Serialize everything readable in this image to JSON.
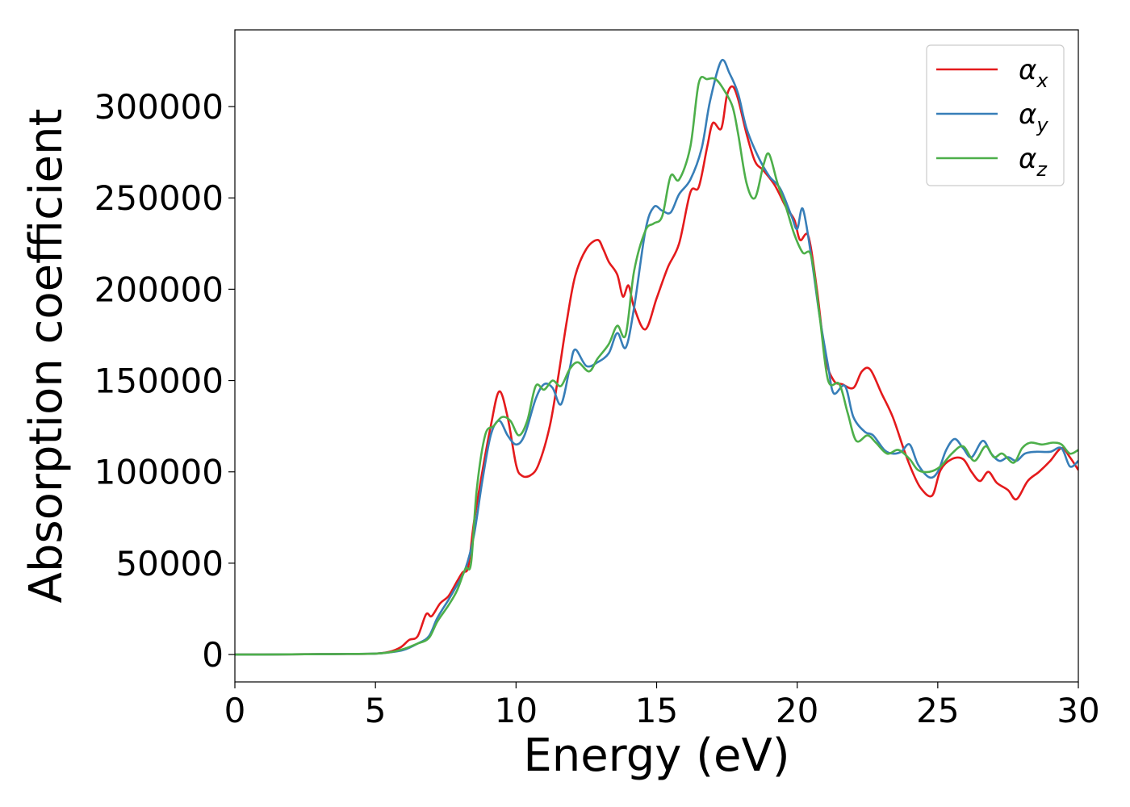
{
  "chart_data": {
    "type": "line",
    "title": "",
    "xlabel": "Energy (eV)",
    "ylabel": "Absorption coefficient",
    "xlim": [
      0,
      30
    ],
    "ylim": [
      -15000,
      342000
    ],
    "x_ticks": [
      0,
      5,
      10,
      15,
      20,
      25,
      30
    ],
    "y_ticks": [
      0,
      50000,
      100000,
      150000,
      200000,
      250000,
      300000
    ],
    "grid": false,
    "legend_position": "top-right",
    "series": [
      {
        "name": "α_x",
        "legend_symbol": "α",
        "legend_subscript": "x",
        "color": "#e41a1c",
        "points": [
          [
            0,
            0
          ],
          [
            1,
            0
          ],
          [
            2,
            100
          ],
          [
            3,
            200
          ],
          [
            4,
            300
          ],
          [
            5,
            500
          ],
          [
            5.5,
            1500
          ],
          [
            5.9,
            4000
          ],
          [
            6.2,
            8000
          ],
          [
            6.5,
            10000
          ],
          [
            6.8,
            22000
          ],
          [
            7.0,
            21000
          ],
          [
            7.3,
            28000
          ],
          [
            7.6,
            32000
          ],
          [
            7.9,
            40000
          ],
          [
            8.1,
            45000
          ],
          [
            8.3,
            48000
          ],
          [
            8.5,
            72000
          ],
          [
            8.8,
            100000
          ],
          [
            9.1,
            125000
          ],
          [
            9.4,
            144000
          ],
          [
            9.7,
            130000
          ],
          [
            10.0,
            104000
          ],
          [
            10.2,
            98000
          ],
          [
            10.5,
            98000
          ],
          [
            10.8,
            104000
          ],
          [
            11.2,
            125000
          ],
          [
            11.5,
            152000
          ],
          [
            11.8,
            182000
          ],
          [
            12.1,
            207000
          ],
          [
            12.5,
            222000
          ],
          [
            12.9,
            227000
          ],
          [
            13.1,
            222000
          ],
          [
            13.3,
            215000
          ],
          [
            13.6,
            208000
          ],
          [
            13.8,
            196000
          ],
          [
            14.0,
            202000
          ],
          [
            14.2,
            190000
          ],
          [
            14.6,
            178000
          ],
          [
            15.0,
            195000
          ],
          [
            15.4,
            212000
          ],
          [
            15.8,
            225000
          ],
          [
            16.2,
            253000
          ],
          [
            16.5,
            256000
          ],
          [
            16.8,
            278000
          ],
          [
            17.0,
            291000
          ],
          [
            17.3,
            288000
          ],
          [
            17.5,
            306000
          ],
          [
            17.7,
            311000
          ],
          [
            17.9,
            304000
          ],
          [
            18.2,
            285000
          ],
          [
            18.5,
            270000
          ],
          [
            18.8,
            265000
          ],
          [
            19.2,
            257000
          ],
          [
            19.6,
            245000
          ],
          [
            19.9,
            238000
          ],
          [
            20.1,
            227000
          ],
          [
            20.4,
            229000
          ],
          [
            20.7,
            200000
          ],
          [
            21.0,
            163000
          ],
          [
            21.3,
            150000
          ],
          [
            21.6,
            148000
          ],
          [
            22.0,
            146000
          ],
          [
            22.3,
            155000
          ],
          [
            22.6,
            156000
          ],
          [
            23.0,
            143000
          ],
          [
            23.4,
            130000
          ],
          [
            23.8,
            112000
          ],
          [
            24.1,
            100000
          ],
          [
            24.4,
            91000
          ],
          [
            24.8,
            87000
          ],
          [
            25.1,
            101000
          ],
          [
            25.5,
            107000
          ],
          [
            25.9,
            107000
          ],
          [
            26.2,
            100000
          ],
          [
            26.5,
            95000
          ],
          [
            26.8,
            100000
          ],
          [
            27.1,
            94000
          ],
          [
            27.5,
            90000
          ],
          [
            27.8,
            85000
          ],
          [
            28.2,
            95000
          ],
          [
            28.6,
            100000
          ],
          [
            29.0,
            106000
          ],
          [
            29.4,
            113000
          ],
          [
            29.7,
            108000
          ],
          [
            30.0,
            101000
          ]
        ]
      },
      {
        "name": "α_y",
        "legend_symbol": "α",
        "legend_subscript": "y",
        "color": "#377eb8",
        "points": [
          [
            0,
            0
          ],
          [
            1,
            0
          ],
          [
            2,
            100
          ],
          [
            3,
            200
          ],
          [
            4,
            300
          ],
          [
            5,
            500
          ],
          [
            5.5,
            1200
          ],
          [
            6.0,
            2500
          ],
          [
            6.5,
            6000
          ],
          [
            6.9,
            10000
          ],
          [
            7.2,
            20000
          ],
          [
            7.6,
            30000
          ],
          [
            7.9,
            38000
          ],
          [
            8.2,
            47000
          ],
          [
            8.5,
            65000
          ],
          [
            8.8,
            95000
          ],
          [
            9.1,
            120000
          ],
          [
            9.4,
            128000
          ],
          [
            9.7,
            120000
          ],
          [
            10.0,
            115000
          ],
          [
            10.3,
            120000
          ],
          [
            10.7,
            140000
          ],
          [
            11.0,
            148000
          ],
          [
            11.3,
            146000
          ],
          [
            11.6,
            137000
          ],
          [
            11.9,
            156000
          ],
          [
            12.1,
            167000
          ],
          [
            12.5,
            158000
          ],
          [
            12.9,
            160000
          ],
          [
            13.3,
            165000
          ],
          [
            13.6,
            176000
          ],
          [
            13.9,
            168000
          ],
          [
            14.2,
            190000
          ],
          [
            14.6,
            232000
          ],
          [
            14.9,
            245000
          ],
          [
            15.2,
            243000
          ],
          [
            15.5,
            242000
          ],
          [
            15.8,
            252000
          ],
          [
            16.2,
            260000
          ],
          [
            16.6,
            277000
          ],
          [
            16.9,
            303000
          ],
          [
            17.3,
            325000
          ],
          [
            17.6,
            318000
          ],
          [
            17.9,
            307000
          ],
          [
            18.2,
            288000
          ],
          [
            18.6,
            273000
          ],
          [
            19.0,
            262000
          ],
          [
            19.4,
            255000
          ],
          [
            19.8,
            240000
          ],
          [
            20.0,
            233000
          ],
          [
            20.2,
            244000
          ],
          [
            20.5,
            218000
          ],
          [
            20.8,
            185000
          ],
          [
            21.1,
            158000
          ],
          [
            21.3,
            143000
          ],
          [
            21.7,
            147000
          ],
          [
            22.0,
            130000
          ],
          [
            22.4,
            122000
          ],
          [
            22.7,
            120000
          ],
          [
            23.1,
            112000
          ],
          [
            23.4,
            110000
          ],
          [
            23.7,
            111000
          ],
          [
            24.0,
            115000
          ],
          [
            24.3,
            104000
          ],
          [
            24.7,
            97000
          ],
          [
            25.0,
            100000
          ],
          [
            25.3,
            112000
          ],
          [
            25.6,
            118000
          ],
          [
            25.9,
            113000
          ],
          [
            26.2,
            108000
          ],
          [
            26.6,
            117000
          ],
          [
            26.9,
            110000
          ],
          [
            27.2,
            106000
          ],
          [
            27.5,
            108000
          ],
          [
            27.8,
            106000
          ],
          [
            28.1,
            110000
          ],
          [
            28.5,
            111000
          ],
          [
            29.0,
            111000
          ],
          [
            29.4,
            113000
          ],
          [
            29.7,
            103000
          ],
          [
            30.0,
            106000
          ]
        ]
      },
      {
        "name": "α_z",
        "legend_symbol": "α",
        "legend_subscript": "z",
        "color": "#4daf4a",
        "points": [
          [
            0,
            0
          ],
          [
            1,
            0
          ],
          [
            2,
            100
          ],
          [
            3,
            200
          ],
          [
            4,
            300
          ],
          [
            5,
            500
          ],
          [
            5.5,
            1200
          ],
          [
            6.0,
            3000
          ],
          [
            6.5,
            6000
          ],
          [
            6.9,
            9000
          ],
          [
            7.2,
            18000
          ],
          [
            7.6,
            27000
          ],
          [
            7.9,
            35000
          ],
          [
            8.2,
            47000
          ],
          [
            8.4,
            50000
          ],
          [
            8.6,
            90000
          ],
          [
            8.9,
            120000
          ],
          [
            9.2,
            125000
          ],
          [
            9.5,
            130000
          ],
          [
            9.8,
            128000
          ],
          [
            10.1,
            120000
          ],
          [
            10.4,
            128000
          ],
          [
            10.7,
            147000
          ],
          [
            11.0,
            145000
          ],
          [
            11.3,
            150000
          ],
          [
            11.6,
            147000
          ],
          [
            11.9,
            156000
          ],
          [
            12.2,
            160000
          ],
          [
            12.6,
            155000
          ],
          [
            12.9,
            162000
          ],
          [
            13.3,
            170000
          ],
          [
            13.6,
            180000
          ],
          [
            13.9,
            175000
          ],
          [
            14.2,
            210000
          ],
          [
            14.6,
            232000
          ],
          [
            14.9,
            236000
          ],
          [
            15.2,
            240000
          ],
          [
            15.5,
            262000
          ],
          [
            15.8,
            260000
          ],
          [
            16.2,
            278000
          ],
          [
            16.5,
            313000
          ],
          [
            16.8,
            315000
          ],
          [
            17.1,
            315000
          ],
          [
            17.4,
            309000
          ],
          [
            17.7,
            300000
          ],
          [
            17.9,
            285000
          ],
          [
            18.2,
            258000
          ],
          [
            18.5,
            250000
          ],
          [
            18.8,
            268000
          ],
          [
            19.0,
            274000
          ],
          [
            19.3,
            258000
          ],
          [
            19.6,
            245000
          ],
          [
            19.9,
            230000
          ],
          [
            20.2,
            220000
          ],
          [
            20.5,
            218000
          ],
          [
            20.8,
            185000
          ],
          [
            21.1,
            150000
          ],
          [
            21.5,
            148000
          ],
          [
            21.8,
            132000
          ],
          [
            22.1,
            117000
          ],
          [
            22.5,
            120000
          ],
          [
            22.8,
            116000
          ],
          [
            23.2,
            110000
          ],
          [
            23.6,
            112000
          ],
          [
            24.0,
            107000
          ],
          [
            24.3,
            101000
          ],
          [
            24.7,
            100000
          ],
          [
            25.1,
            103000
          ],
          [
            25.5,
            110000
          ],
          [
            25.9,
            114000
          ],
          [
            26.3,
            106000
          ],
          [
            26.7,
            114000
          ],
          [
            27.0,
            108000
          ],
          [
            27.3,
            110000
          ],
          [
            27.7,
            105000
          ],
          [
            28.0,
            113000
          ],
          [
            28.3,
            116000
          ],
          [
            28.7,
            115000
          ],
          [
            29.1,
            116000
          ],
          [
            29.4,
            115000
          ],
          [
            29.7,
            110000
          ],
          [
            30.0,
            112000
          ]
        ]
      }
    ]
  }
}
